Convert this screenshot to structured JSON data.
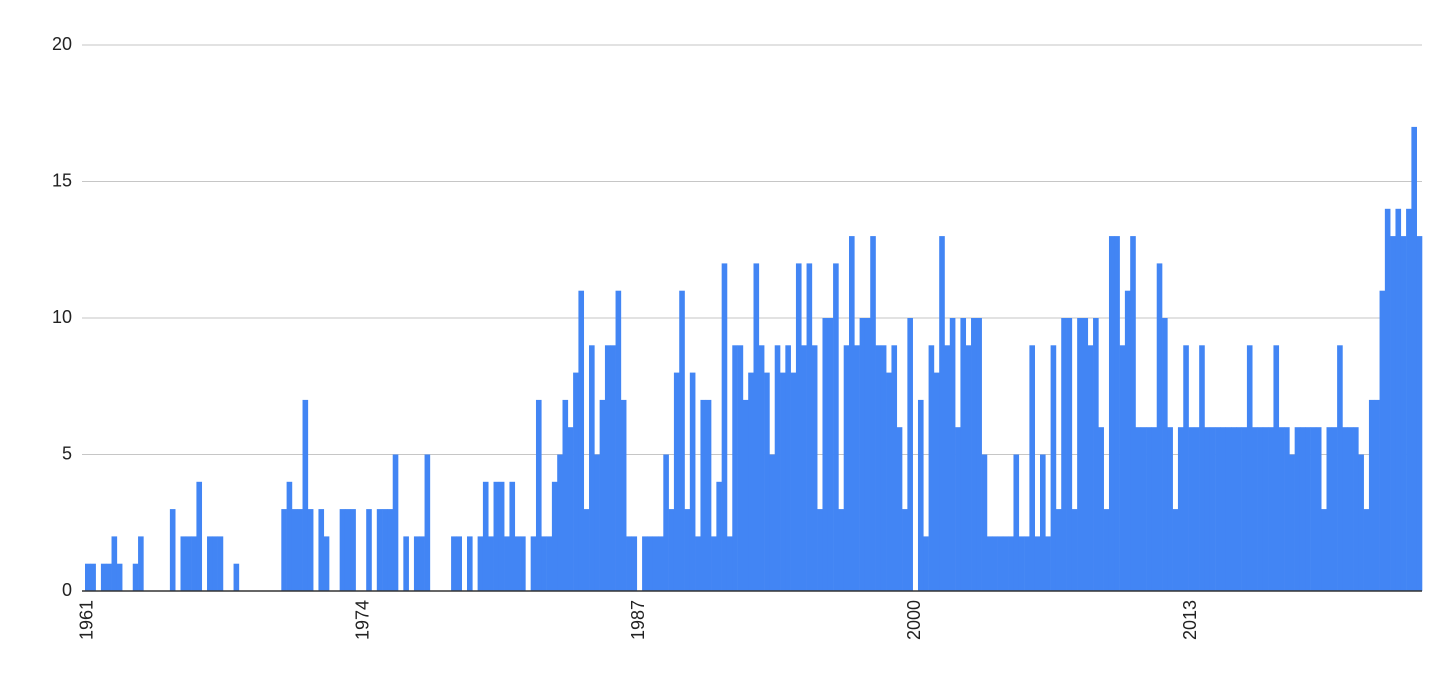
{
  "chart_data": {
    "type": "bar",
    "color": "#4285f4",
    "grid": true,
    "ylim": [
      0,
      20
    ],
    "yticks": [
      0,
      5,
      10,
      15,
      20
    ],
    "categories": [
      "1961",
      null,
      null,
      null,
      null,
      null,
      null,
      null,
      null,
      null,
      null,
      null,
      null,
      null,
      null,
      null,
      null,
      null,
      null,
      null,
      null,
      null,
      null,
      null,
      null,
      null,
      null,
      null,
      null,
      null,
      null,
      null,
      null,
      null,
      null,
      null,
      null,
      null,
      null,
      null,
      null,
      null,
      null,
      null,
      null,
      null,
      null,
      null,
      null,
      null,
      null,
      null,
      "1974",
      null,
      null,
      null,
      null,
      null,
      null,
      null,
      null,
      null,
      null,
      null,
      null,
      null,
      null,
      null,
      null,
      null,
      null,
      null,
      null,
      null,
      null,
      null,
      null,
      null,
      null,
      null,
      null,
      null,
      null,
      null,
      null,
      null,
      null,
      null,
      null,
      null,
      null,
      null,
      null,
      null,
      null,
      null,
      null,
      null,
      null,
      null,
      null,
      null,
      null,
      null,
      "1987",
      null,
      null,
      null,
      null,
      null,
      null,
      null,
      null,
      null,
      null,
      null,
      null,
      null,
      null,
      null,
      null,
      null,
      null,
      null,
      null,
      null,
      null,
      null,
      null,
      null,
      null,
      null,
      null,
      null,
      null,
      null,
      null,
      null,
      null,
      null,
      null,
      null,
      null,
      null,
      null,
      null,
      null,
      null,
      null,
      null,
      null,
      null,
      null,
      null,
      null,
      null,
      "2000",
      null,
      null,
      null,
      null,
      null,
      null,
      null,
      null,
      null,
      null,
      null,
      null,
      null,
      null,
      null,
      null,
      null,
      null,
      null,
      null,
      null,
      null,
      null,
      null,
      null,
      null,
      null,
      null,
      null,
      null,
      null,
      null,
      null,
      null,
      null,
      null,
      null,
      null,
      null,
      null,
      null,
      null,
      null,
      null,
      null,
      null,
      null,
      null,
      null,
      null,
      null,
      "2013",
      null,
      null,
      null,
      null,
      null,
      null,
      null,
      null,
      null,
      null,
      null,
      null,
      null,
      null,
      null,
      null,
      null,
      null,
      null,
      null,
      null,
      null,
      null,
      null,
      null,
      null,
      null,
      null,
      null,
      null,
      null,
      null,
      null,
      null,
      null,
      null,
      null,
      null,
      null,
      null,
      null,
      null,
      null
    ],
    "values": [
      1,
      1,
      0,
      1,
      1,
      2,
      1,
      0,
      0,
      1,
      2,
      0,
      0,
      0,
      0,
      0,
      3,
      0,
      2,
      2,
      2,
      4,
      0,
      2,
      2,
      2,
      0,
      0,
      1,
      0,
      0,
      0,
      0,
      0,
      0,
      0,
      0,
      3,
      4,
      3,
      3,
      7,
      3,
      0,
      3,
      2,
      0,
      0,
      3,
      3,
      3,
      0,
      0,
      3,
      0,
      3,
      3,
      3,
      5,
      0,
      2,
      0,
      2,
      2,
      5,
      0,
      0,
      0,
      0,
      2,
      2,
      0,
      2,
      0,
      2,
      4,
      2,
      4,
      4,
      2,
      4,
      2,
      2,
      0,
      2,
      7,
      2,
      2,
      4,
      5,
      7,
      6,
      8,
      11,
      3,
      9,
      5,
      7,
      9,
      9,
      11,
      7,
      2,
      2,
      0,
      2,
      2,
      2,
      2,
      5,
      3,
      8,
      11,
      3,
      8,
      2,
      7,
      7,
      2,
      4,
      12,
      2,
      9,
      9,
      7,
      8,
      12,
      9,
      8,
      5,
      9,
      8,
      9,
      8,
      12,
      9,
      12,
      9,
      3,
      10,
      10,
      12,
      3,
      9,
      13,
      9,
      10,
      10,
      13,
      9,
      9,
      8,
      9,
      6,
      3,
      10,
      0,
      7,
      2,
      9,
      8,
      13,
      9,
      10,
      6,
      10,
      9,
      10,
      10,
      5,
      2,
      2,
      2,
      2,
      2,
      5,
      2,
      2,
      9,
      2,
      5,
      2,
      9,
      3,
      10,
      10,
      3,
      10,
      10,
      9,
      10,
      6,
      3,
      13,
      13,
      9,
      11,
      13,
      6,
      6,
      6,
      6,
      12,
      10,
      6,
      3,
      6,
      9,
      6,
      6,
      9,
      6,
      6,
      6,
      6,
      6,
      6,
      6,
      6,
      9,
      6,
      6,
      6,
      6,
      9,
      6,
      6,
      5,
      6,
      6,
      6,
      6,
      6,
      3,
      6,
      6,
      9,
      6,
      6,
      6,
      5,
      3,
      7,
      7,
      11,
      14,
      13,
      14,
      13,
      14,
      17,
      13
    ]
  }
}
